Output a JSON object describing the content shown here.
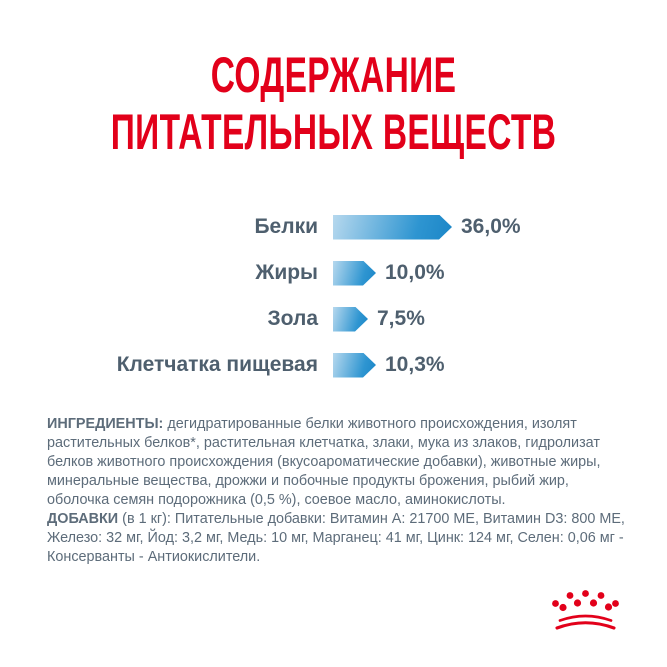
{
  "title": {
    "line1": "СОДЕРЖАНИЕ",
    "line2": "ПИТАТЕЛЬНЫХ ВЕЩЕСТВ"
  },
  "chart_data": {
    "type": "bar",
    "orientation": "horizontal",
    "categories": [
      "Белки",
      "Жиры",
      "Зола",
      "Клетчатка пищевая"
    ],
    "values": [
      36.0,
      10.0,
      7.5,
      10.3
    ],
    "value_labels": [
      "36,0%",
      "10,0%",
      "7,5%",
      "10,3%"
    ],
    "unit": "%",
    "xlim": [
      0,
      40
    ],
    "grid": false,
    "legend": false,
    "bar_shape": "arrow-right",
    "bar_gradient_start": "#b6d8ee",
    "bar_gradient_end": "#1b86c7",
    "label_color": "#4e5f6e"
  },
  "ingredients": {
    "label": "ИНГРЕДИЕНТЫ:",
    "text": "дегидратированные белки животного происхождения, изолят растительных белков*, растительная клетчатка, злаки, мука из злаков, гидролизат белков животного происхождения (вкусоароматические добавки), животные жиры, минеральные вещества, дрожжи и побочные продукты брожения, рыбий жир, оболочка семян подорожника (0,5 %), соевое масло, аминокислоты."
  },
  "additives": {
    "label": "ДОБАВКИ",
    "text": "(в 1 кг): Питательные добавки: Витамин А: 21700 МЕ, Витамин D3: 800 МЕ, Железо: 32 мг, Йод: 3,2 мг, Медь: 10 мг, Марганец: 41 мг, Цинк: 124 мг, Селен: 0,06 мг - Консерванты - Антиокислители."
  },
  "branding": {
    "logo": "royal-canin-crown",
    "brand_red": "#e2001a"
  },
  "colors": {
    "title_red": "#e2001a",
    "body_text": "#5d6c7a",
    "chart_text": "#4e5f6e"
  }
}
